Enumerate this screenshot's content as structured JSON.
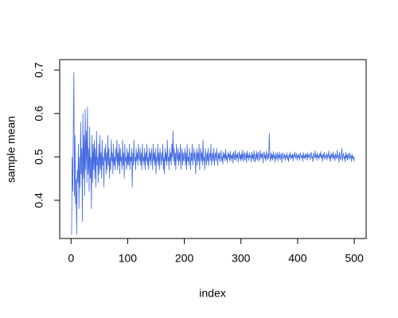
{
  "chart_data": {
    "type": "line",
    "x_label": "index",
    "y_label": "sample mean",
    "x": [
      1,
      2,
      3,
      4,
      5,
      6,
      7,
      8,
      9,
      10,
      11,
      12,
      13,
      14,
      15,
      16,
      17,
      18,
      19,
      20,
      21,
      22,
      23,
      24,
      25,
      26,
      27,
      28,
      29,
      30,
      31,
      32,
      33,
      34,
      35,
      36,
      37,
      38,
      39,
      40,
      41,
      42,
      43,
      44,
      45,
      46,
      47,
      48,
      49,
      50,
      51,
      52,
      53,
      54,
      55,
      56,
      57,
      58,
      59,
      60,
      61,
      62,
      63,
      64,
      65,
      66,
      67,
      68,
      69,
      70,
      71,
      72,
      73,
      74,
      75,
      76,
      77,
      78,
      79,
      80,
      81,
      82,
      83,
      84,
      85,
      86,
      87,
      88,
      89,
      90,
      91,
      92,
      93,
      94,
      95,
      96,
      97,
      98,
      99,
      100,
      101,
      102,
      103,
      104,
      105,
      106,
      107,
      108,
      109,
      110,
      111,
      112,
      113,
      114,
      115,
      116,
      117,
      118,
      119,
      120,
      121,
      122,
      123,
      124,
      125,
      126,
      127,
      128,
      129,
      130,
      131,
      132,
      133,
      134,
      135,
      136,
      137,
      138,
      139,
      140,
      141,
      142,
      143,
      144,
      145,
      146,
      147,
      148,
      149,
      150,
      151,
      152,
      153,
      154,
      155,
      156,
      157,
      158,
      159,
      160,
      161,
      162,
      163,
      164,
      165,
      166,
      167,
      168,
      169,
      170,
      171,
      172,
      173,
      174,
      175,
      176,
      177,
      178,
      179,
      180,
      181,
      182,
      183,
      184,
      185,
      186,
      187,
      188,
      189,
      190,
      191,
      192,
      193,
      194,
      195,
      196,
      197,
      198,
      199,
      200,
      201,
      202,
      203,
      204,
      205,
      206,
      207,
      208,
      209,
      210,
      211,
      212,
      213,
      214,
      215,
      216,
      217,
      218,
      219,
      220,
      221,
      222,
      223,
      224,
      225,
      226,
      227,
      228,
      229,
      230,
      231,
      232,
      233,
      234,
      235,
      236,
      237,
      238,
      239,
      240,
      241,
      242,
      243,
      244,
      245,
      246,
      247,
      248,
      249,
      250,
      251,
      252,
      253,
      254,
      255,
      256,
      257,
      258,
      259,
      260,
      261,
      262,
      263,
      264,
      265,
      266,
      267,
      268,
      269,
      270,
      271,
      272,
      273,
      274,
      275,
      276,
      277,
      278,
      279,
      280,
      281,
      282,
      283,
      284,
      285,
      286,
      287,
      288,
      289,
      290,
      291,
      292,
      293,
      294,
      295,
      296,
      297,
      298,
      299,
      300,
      301,
      302,
      303,
      304,
      305,
      306,
      307,
      308,
      309,
      310,
      311,
      312,
      313,
      314,
      315,
      316,
      317,
      318,
      319,
      320,
      321,
      322,
      323,
      324,
      325,
      326,
      327,
      328,
      329,
      330,
      331,
      332,
      333,
      334,
      335,
      336,
      337,
      338,
      339,
      340,
      341,
      342,
      343,
      344,
      345,
      346,
      347,
      348,
      349,
      350,
      351,
      352,
      353,
      354,
      355,
      356,
      357,
      358,
      359,
      360,
      361,
      362,
      363,
      364,
      365,
      366,
      367,
      368,
      369,
      370,
      371,
      372,
      373,
      374,
      375,
      376,
      377,
      378,
      379,
      380,
      381,
      382,
      383,
      384,
      385,
      386,
      387,
      388,
      389,
      390,
      391,
      392,
      393,
      394,
      395,
      396,
      397,
      398,
      399,
      400,
      401,
      402,
      403,
      404,
      405,
      406,
      407,
      408,
      409,
      410,
      411,
      412,
      413,
      414,
      415,
      416,
      417,
      418,
      419,
      420,
      421,
      422,
      423,
      424,
      425,
      426,
      427,
      428,
      429,
      430,
      431,
      432,
      433,
      434,
      435,
      436,
      437,
      438,
      439,
      440,
      441,
      442,
      443,
      444,
      445,
      446,
      447,
      448,
      449,
      450,
      451,
      452,
      453,
      454,
      455,
      456,
      457,
      458,
      459,
      460,
      461,
      462,
      463,
      464,
      465,
      466,
      467,
      468,
      469,
      470,
      471,
      472,
      473,
      474,
      475,
      476,
      477,
      478,
      479,
      480,
      481,
      482,
      483,
      484,
      485,
      486,
      487,
      488,
      489,
      490,
      491,
      492,
      493,
      494,
      495,
      496,
      497,
      498,
      499,
      500
    ],
    "series": [
      {
        "color": "#4169e1",
        "values": [
          0.32,
          0.5,
          0.42,
          0.56,
          0.695,
          0.41,
          0.55,
          0.39,
          0.45,
          0.32,
          0.47,
          0.44,
          0.53,
          0.38,
          0.5,
          0.43,
          0.58,
          0.46,
          0.52,
          0.35,
          0.6,
          0.45,
          0.55,
          0.41,
          0.61,
          0.47,
          0.56,
          0.44,
          0.615,
          0.46,
          0.52,
          0.42,
          0.57,
          0.45,
          0.5,
          0.38,
          0.55,
          0.44,
          0.53,
          0.47,
          0.54,
          0.45,
          0.52,
          0.43,
          0.56,
          0.48,
          0.5,
          0.44,
          0.53,
          0.46,
          0.55,
          0.47,
          0.51,
          0.45,
          0.54,
          0.48,
          0.5,
          0.43,
          0.52,
          0.49,
          0.53,
          0.46,
          0.51,
          0.47,
          0.55,
          0.48,
          0.52,
          0.45,
          0.5,
          0.47,
          0.54,
          0.49,
          0.51,
          0.46,
          0.53,
          0.48,
          0.5,
          0.47,
          0.52,
          0.49,
          0.54,
          0.47,
          0.51,
          0.48,
          0.53,
          0.46,
          0.52,
          0.49,
          0.5,
          0.47,
          0.54,
          0.48,
          0.51,
          0.45,
          0.53,
          0.49,
          0.5,
          0.47,
          0.52,
          0.48,
          0.51,
          0.48,
          0.53,
          0.47,
          0.5,
          0.49,
          0.52,
          0.43,
          0.51,
          0.48,
          0.54,
          0.49,
          0.5,
          0.47,
          0.52,
          0.49,
          0.51,
          0.48,
          0.53,
          0.5,
          0.49,
          0.52,
          0.48,
          0.51,
          0.47,
          0.53,
          0.49,
          0.5,
          0.48,
          0.52,
          0.47,
          0.51,
          0.49,
          0.53,
          0.48,
          0.5,
          0.47,
          0.52,
          0.49,
          0.51,
          0.48,
          0.52,
          0.5,
          0.47,
          0.53,
          0.49,
          0.51,
          0.48,
          0.52,
          0.46,
          0.5,
          0.49,
          0.53,
          0.48,
          0.51,
          0.47,
          0.52,
          0.5,
          0.48,
          0.51,
          0.49,
          0.53,
          0.47,
          0.5,
          0.46,
          0.52,
          0.49,
          0.51,
          0.48,
          0.54,
          0.49,
          0.5,
          0.47,
          0.52,
          0.49,
          0.51,
          0.48,
          0.53,
          0.5,
          0.56,
          0.49,
          0.52,
          0.48,
          0.51,
          0.47,
          0.53,
          0.5,
          0.49,
          0.52,
          0.48,
          0.51,
          0.49,
          0.53,
          0.47,
          0.5,
          0.52,
          0.48,
          0.51,
          0.49,
          0.5,
          0.52,
          0.48,
          0.51,
          0.47,
          0.53,
          0.49,
          0.5,
          0.48,
          0.52,
          0.5,
          0.47,
          0.51,
          0.49,
          0.53,
          0.48,
          0.5,
          0.52,
          0.49,
          0.51,
          0.46,
          0.5,
          0.52,
          0.48,
          0.51,
          0.49,
          0.53,
          0.47,
          0.5,
          0.52,
          0.49,
          0.51,
          0.48,
          0.54,
          0.49,
          0.5,
          0.47,
          0.52,
          0.5,
          0.48,
          0.51,
          0.49,
          0.52,
          0.48,
          0.5,
          0.51,
          0.49,
          0.53,
          0.48,
          0.5,
          0.51,
          0.49,
          0.52,
          0.48,
          0.5,
          0.51,
          0.49,
          0.52,
          0.5,
          0.48,
          0.51,
          0.495,
          0.51,
          0.488,
          0.505,
          0.515,
          0.49,
          0.502,
          0.483,
          0.512,
          0.497,
          0.508,
          0.49,
          0.518,
          0.494,
          0.503,
          0.486,
          0.511,
          0.499,
          0.507,
          0.492,
          0.514,
          0.489,
          0.503,
          0.496,
          0.509,
          0.485,
          0.512,
          0.5,
          0.493,
          0.516,
          0.491,
          0.505,
          0.498,
          0.51,
          0.487,
          0.502,
          0.513,
          0.495,
          0.506,
          0.49,
          0.508,
          0.494,
          0.517,
          0.489,
          0.503,
          0.511,
          0.492,
          0.5,
          0.509,
          0.486,
          0.514,
          0.497,
          0.505,
          0.491,
          0.51,
          0.498,
          0.503,
          0.488,
          0.512,
          0.496,
          0.506,
          0.49,
          0.515,
          0.499,
          0.487,
          0.508,
          0.495,
          0.513,
          0.492,
          0.504,
          0.511,
          0.489,
          0.502,
          0.516,
          0.494,
          0.507,
          0.498,
          0.51,
          0.485,
          0.503,
          0.512,
          0.496,
          0.505,
          0.49,
          0.514,
          0.5,
          0.493,
          0.508,
          0.497,
          0.555,
          0.501,
          0.489,
          0.51,
          0.495,
          0.506,
          0.492,
          0.513,
          0.498,
          0.504,
          0.487,
          0.509,
          0.494,
          0.502,
          0.511,
          0.49,
          0.505,
          0.497,
          0.512,
          0.493,
          0.501,
          0.508,
          0.486,
          0.503,
          0.51,
          0.495,
          0.5,
          0.507,
          0.491,
          0.504,
          0.498,
          0.51,
          0.493,
          0.502,
          0.488,
          0.506,
          0.499,
          0.511,
          0.494,
          0.503,
          0.497,
          0.508,
          0.49,
          0.505,
          0.5,
          0.512,
          0.495,
          0.502,
          0.509,
          0.492,
          0.504,
          0.498,
          0.507,
          0.491,
          0.503,
          0.51,
          0.496,
          0.5,
          0.505,
          0.489,
          0.511,
          0.497,
          0.503,
          0.494,
          0.508,
          0.499,
          0.506,
          0.492,
          0.51,
          0.498,
          0.502,
          0.507,
          0.493,
          0.504,
          0.512,
          0.497,
          0.501,
          0.488,
          0.509,
          0.502,
          0.496,
          0.515,
          0.499,
          0.505,
          0.491,
          0.51,
          0.498,
          0.503,
          0.494,
          0.508,
          0.5,
          0.513,
          0.496,
          0.504,
          0.489,
          0.507,
          0.499,
          0.511,
          0.493,
          0.502,
          0.498,
          0.509,
          0.492,
          0.505,
          0.5,
          0.514,
          0.495,
          0.503,
          0.488,
          0.51,
          0.499,
          0.506,
          0.494,
          0.512,
          0.497,
          0.503,
          0.49,
          0.508,
          0.501,
          0.495,
          0.516,
          0.498,
          0.504,
          0.487,
          0.511,
          0.5,
          0.493,
          0.506,
          0.52,
          0.49,
          0.503,
          0.509,
          0.495,
          0.502,
          0.488,
          0.511,
          0.497,
          0.505,
          0.492,
          0.508,
          0.5,
          0.494,
          0.51,
          0.498,
          0.503,
          0.489,
          0.507,
          0.496,
          0.502,
          0.49,
          0.5
        ]
      }
    ],
    "xlim": [
      -20,
      521
    ],
    "ylim": [
      0.312,
      0.724
    ],
    "xticks": [
      0,
      100,
      200,
      300,
      400,
      500
    ],
    "yticks": [
      0.4,
      0.5,
      0.6,
      0.7
    ],
    "grid": false
  }
}
